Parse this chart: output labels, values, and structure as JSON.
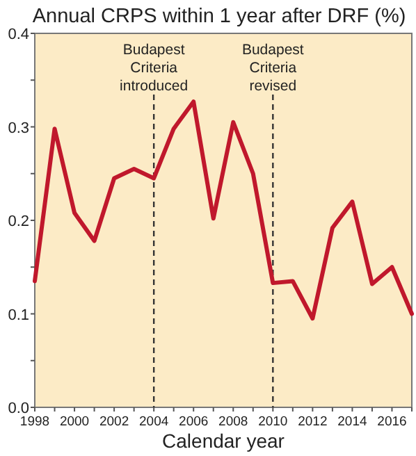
{
  "chart_data": {
    "type": "line",
    "title": "Annual CRPS within 1 year after DRF (%)",
    "xlabel": "Calendar year",
    "x": [
      1998,
      1999,
      2000,
      2001,
      2002,
      2003,
      2004,
      2005,
      2006,
      2007,
      2008,
      2009,
      2010,
      2011,
      2012,
      2013,
      2014,
      2015,
      2016,
      2017
    ],
    "series": [
      {
        "color": "#c0182c",
        "values": [
          0.135,
          0.298,
          0.208,
          0.178,
          0.245,
          0.255,
          0.245,
          0.298,
          0.327,
          0.202,
          0.305,
          0.25,
          0.133,
          0.135,
          0.095,
          0.192,
          0.22,
          0.132,
          0.15,
          0.1
        ]
      }
    ],
    "xlim": [
      1998,
      2017
    ],
    "xticks": [
      1998,
      {
        "value": 1999,
        "label": null
      },
      2000,
      {
        "value": 2001,
        "label": null
      },
      2002,
      {
        "value": 2003,
        "label": null
      },
      2004,
      {
        "value": 2005,
        "label": null
      },
      2006,
      {
        "value": 2007,
        "label": null
      },
      2008,
      {
        "value": 2009,
        "label": null
      },
      2010,
      {
        "value": 2011,
        "label": null
      },
      2012,
      {
        "value": 2013,
        "label": null
      },
      2014,
      {
        "value": 2015,
        "label": null
      },
      2016,
      {
        "value": 2017,
        "label": null
      }
    ],
    "ylim": [
      0,
      0.4
    ],
    "yticks": [
      {
        "value": 0,
        "label": "0.0"
      },
      {
        "value": 0.05,
        "label": null
      },
      0.1,
      {
        "value": 0.15,
        "label": null
      },
      0.2,
      {
        "value": 0.25,
        "label": null
      },
      0.3,
      {
        "value": 0.35,
        "label": null
      },
      0.4
    ],
    "ref_lines": [
      {
        "axis": "x",
        "value": 2004,
        "label": "Budapest\nCriteria\nintroduced",
        "line_style": "dashed",
        "color": "#333333"
      },
      {
        "axis": "x",
        "value": 2010,
        "label": "Budapest\nCriteria\nrevised",
        "line_style": "dashed",
        "color": "#333333"
      }
    ],
    "grid": false,
    "marker": "none",
    "line_style": "solid"
  }
}
